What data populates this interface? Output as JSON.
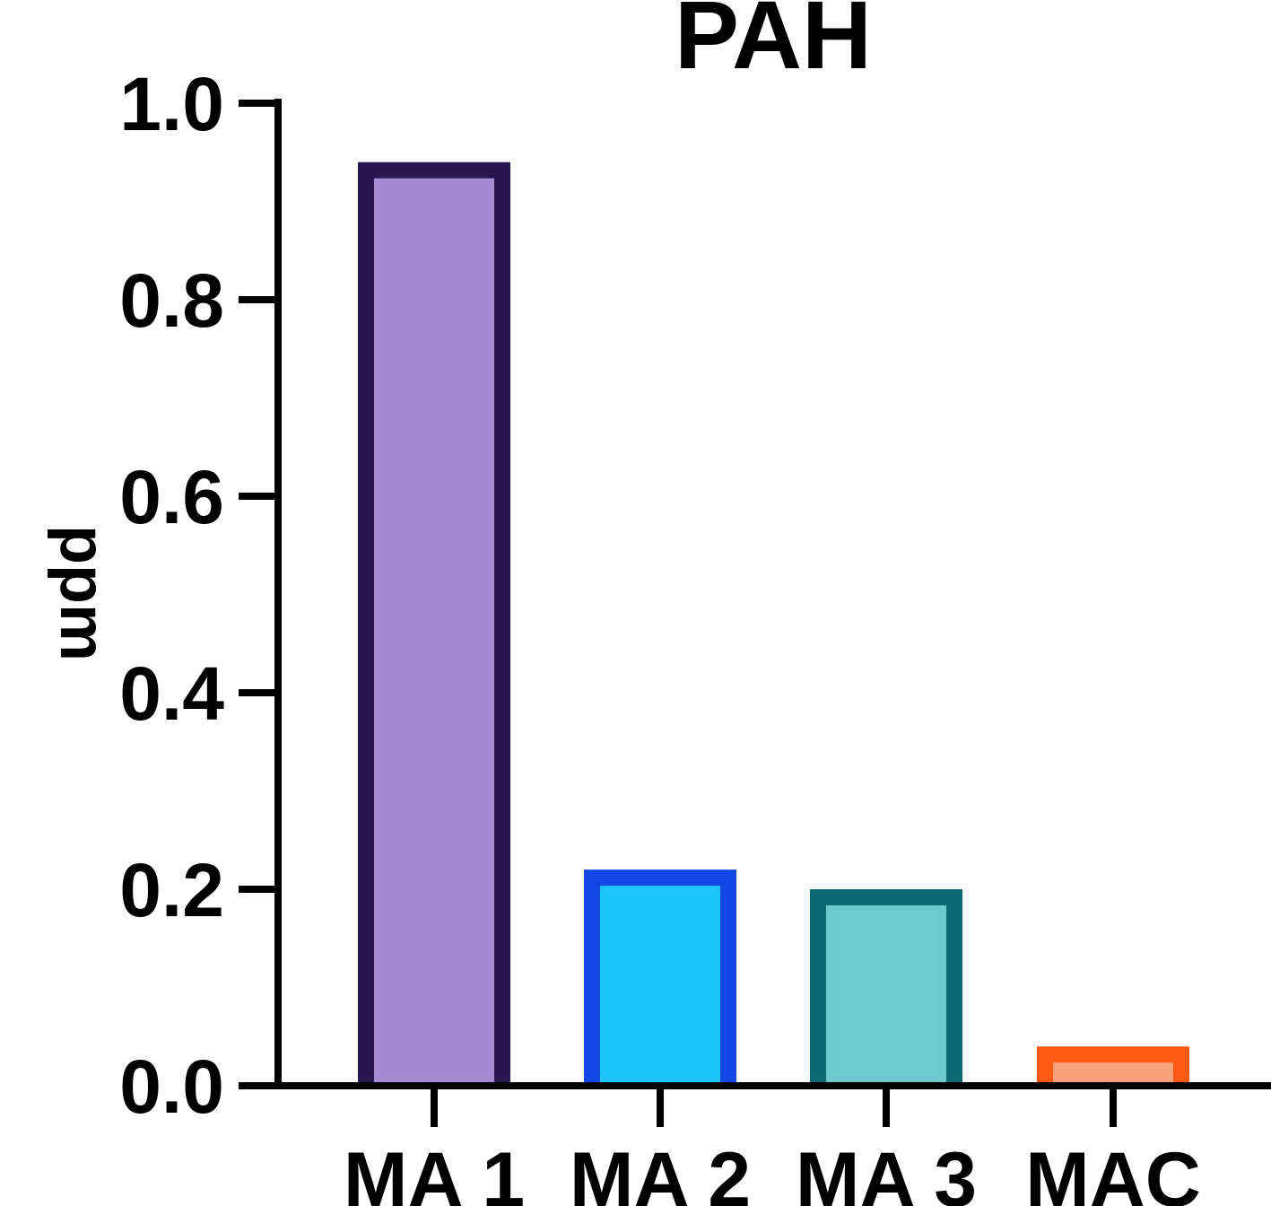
{
  "chart_data": {
    "type": "bar",
    "title": "PAH",
    "xlabel": "",
    "ylabel": "ppm",
    "ylim": [
      0,
      1.0
    ],
    "yticks": [
      "0.0",
      "0.2",
      "0.4",
      "0.6",
      "0.8",
      "1.0"
    ],
    "ytick_values": [
      0,
      0.2,
      0.4,
      0.6,
      0.8,
      1.0
    ],
    "categories": [
      "MA 1",
      "MA 2",
      "MA 3",
      "MAC"
    ],
    "values": [
      0.94,
      0.22,
      0.2,
      0.04
    ],
    "fill_colors": [
      "#a58ad3",
      "#1fc4fc",
      "#70c8cf",
      "#f9a07c"
    ],
    "border_colors": [
      "#2b1650",
      "#1246e5",
      "#0d6b74",
      "#ff5a14"
    ],
    "grid": false,
    "legend": "none"
  }
}
